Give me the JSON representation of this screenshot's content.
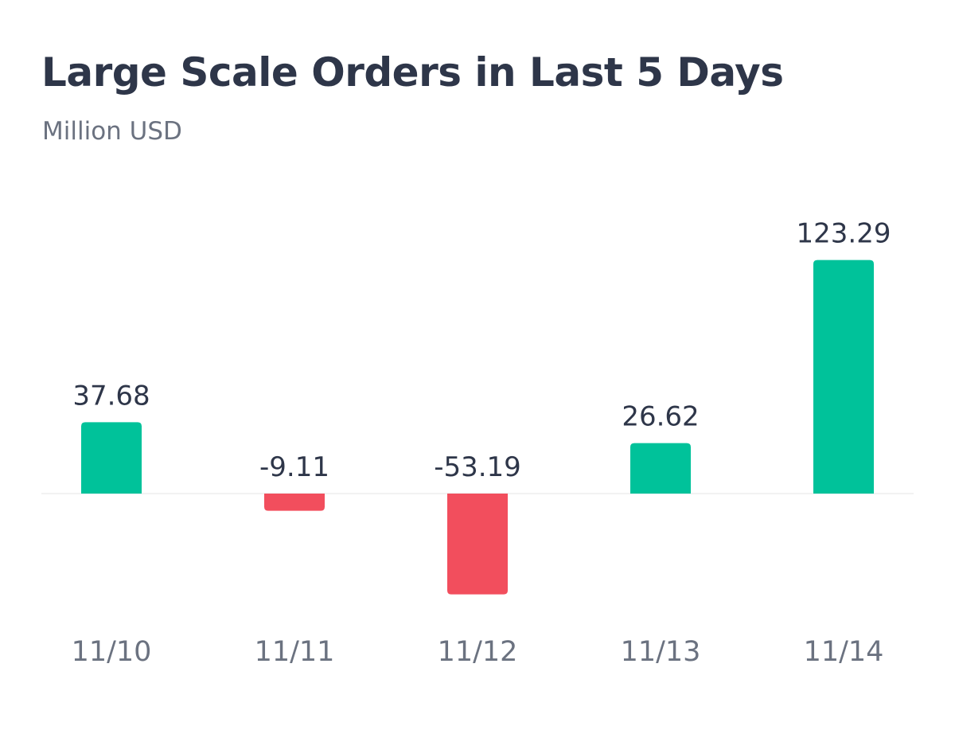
{
  "header": {
    "title": "Large Scale Orders in Last 5 Days",
    "subtitle": "Million USD"
  },
  "chart_data": {
    "type": "bar",
    "title": "Large Scale Orders in Last 5 Days",
    "subtitle": "Million USD",
    "categories": [
      "11/10",
      "11/11",
      "11/12",
      "11/13",
      "11/14"
    ],
    "values": [
      37.68,
      -9.11,
      -53.19,
      26.62,
      123.29
    ],
    "value_labels": [
      "37.68",
      "-9.11",
      "-53.19",
      "26.62",
      "123.29"
    ],
    "xlabel": "",
    "ylabel": "",
    "grid": false,
    "legend": "none",
    "colors": {
      "positive": "#00c29a",
      "negative": "#f24e5d",
      "baseline": "#eeeeee"
    }
  }
}
